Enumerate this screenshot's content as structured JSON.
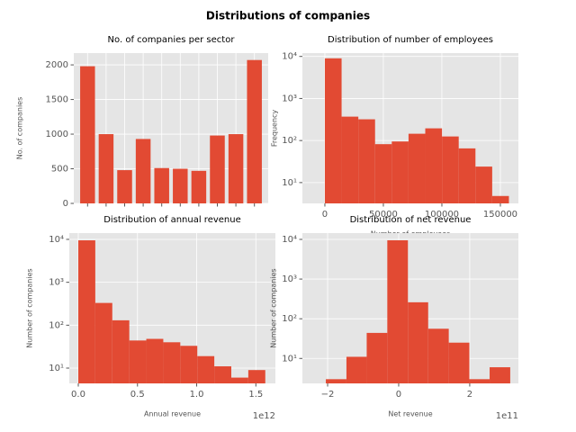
{
  "title": "Distributions of companies",
  "chart_data": [
    {
      "type": "bar",
      "title": "No. of companies per sector",
      "ylabel": "No. of companies",
      "categories": [
        null,
        null,
        null,
        null,
        null,
        null,
        null,
        null,
        null,
        null
      ],
      "values": [
        1980,
        1000,
        480,
        930,
        510,
        500,
        470,
        980,
        1000,
        2070
      ],
      "color": "#e24a33",
      "ylim": [
        0,
        2170
      ],
      "yticks": [
        0,
        500,
        1000,
        1500,
        2000
      ],
      "grid": true
    },
    {
      "type": "histogram",
      "title": "Distribution of number of employees",
      "xlabel": "Number of employees",
      "ylabel": "Frequency",
      "bins": [
        0,
        14300,
        28600,
        42900,
        57200,
        71500,
        85800,
        100100,
        114400,
        128700,
        143000,
        157300
      ],
      "values": [
        9000,
        370,
        320,
        82,
        95,
        145,
        195,
        125,
        65,
        24,
        4.8
      ],
      "color": "#e24a33",
      "xlim": [
        -19200,
        165400
      ],
      "xticks": [
        0,
        50000,
        100000,
        150000
      ],
      "yscale": "log",
      "ylim": [
        3.2,
        12000
      ],
      "yticks": [
        {
          "value": 10,
          "label": "10¹"
        },
        {
          "value": 100,
          "label": "10²"
        },
        {
          "value": 1000,
          "label": "10³"
        },
        {
          "value": 10000,
          "label": "10⁴"
        }
      ],
      "grid": true
    },
    {
      "type": "histogram",
      "title": "Distribution of annual revenue",
      "xlabel": "Annual revenue",
      "ylabel": "Number of companies",
      "offset_text": "1e12",
      "bins": [
        0,
        143600000000,
        287200000000,
        430800000000,
        574400000000,
        718000000000,
        861600000000,
        1005200000000,
        1148800000000,
        1292400000000,
        1436000000000,
        1579600000000
      ],
      "values": [
        9500,
        330,
        130,
        44,
        48,
        40,
        33,
        19,
        11,
        6,
        9
      ],
      "color": "#e24a33",
      "xlim": [
        -76000000000,
        1665000000000
      ],
      "xticks": [
        {
          "value": 0,
          "label": "0.0"
        },
        {
          "value": 500000000000,
          "label": "0.5"
        },
        {
          "value": 1000000000000,
          "label": "1.0"
        },
        {
          "value": 1500000000000,
          "label": "1.5"
        }
      ],
      "yscale": "log",
      "ylim": [
        4.4,
        14000
      ],
      "yticks": [
        {
          "value": 10,
          "label": "10¹"
        },
        {
          "value": 100,
          "label": "10²"
        },
        {
          "value": 1000,
          "label": "10³"
        },
        {
          "value": 10000,
          "label": "10⁴"
        }
      ],
      "grid": true
    },
    {
      "type": "histogram",
      "title": "Distribution of net revenue",
      "xlabel": "Net revenue",
      "ylabel": "Number of companies",
      "offset_text": "1e11",
      "bins": [
        -205000000000,
        -147000000000,
        -90000000000,
        -32000000000,
        26000000000,
        83000000000,
        141000000000,
        199000000000,
        256000000000,
        314000000000
      ],
      "values": [
        3,
        11,
        44,
        9500,
        260,
        56,
        25,
        3,
        6
      ],
      "color": "#e24a33",
      "xlim": [
        -271000000000,
        337000000000
      ],
      "xticks": [
        {
          "value": -200000000000,
          "label": "−2"
        },
        {
          "value": 0,
          "label": "0"
        },
        {
          "value": 200000000000,
          "label": "2"
        }
      ],
      "yscale": "log",
      "ylim": [
        2.35,
        14400
      ],
      "yticks": [
        {
          "value": 10,
          "label": "10¹"
        },
        {
          "value": 100,
          "label": "10²"
        },
        {
          "value": 1000,
          "label": "10³"
        },
        {
          "value": 10000,
          "label": "10⁴"
        }
      ],
      "grid": true
    }
  ]
}
